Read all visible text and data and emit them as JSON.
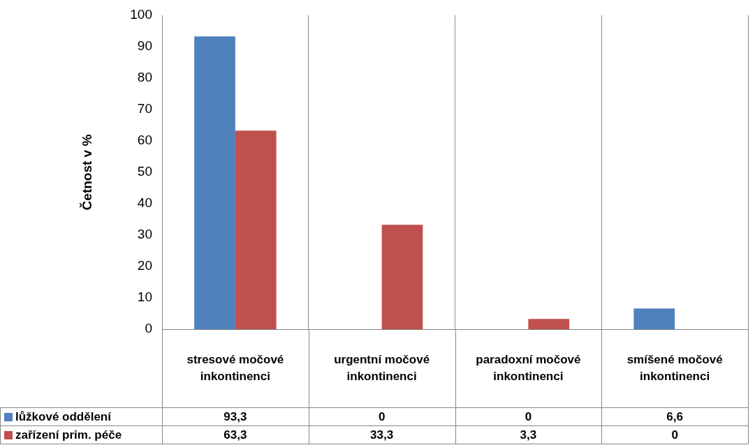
{
  "chart_data": {
    "type": "bar",
    "ylabel": "Četnost v %",
    "categories": [
      "stresové močové inkontinenci",
      "urgentní močové inkontinenci",
      "paradoxní močové inkontinenci",
      "smíšené močové inkontinenci"
    ],
    "series": [
      {
        "name": "lůžkové oddělení",
        "color": "#4f81bd",
        "values": [
          93.3,
          0,
          0,
          6.6
        ],
        "value_labels": [
          "93,3",
          "0",
          "0",
          "6,6"
        ]
      },
      {
        "name": "zařízení prim. péče",
        "color": "#c0504d",
        "values": [
          63.3,
          33.3,
          3.3,
          0
        ],
        "value_labels": [
          "63,3",
          "33,3",
          "3,3",
          "0"
        ]
      }
    ],
    "ylim": [
      0,
      100
    ],
    "yticks": [
      0,
      10,
      20,
      30,
      40,
      50,
      60,
      70,
      80,
      90,
      100
    ],
    "grid": "x",
    "legend": "bottom"
  }
}
